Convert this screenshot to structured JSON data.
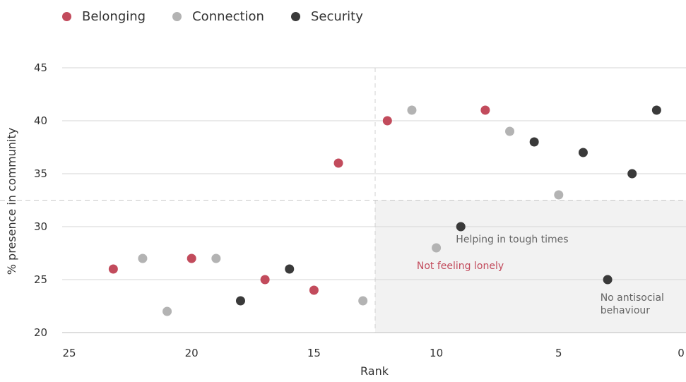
{
  "chart_data": {
    "type": "scatter",
    "xlabel": "Rank",
    "ylabel": "% presence in community",
    "xlim": [
      25,
      0
    ],
    "ylim": [
      20,
      45
    ],
    "x_ticks": [
      25,
      20,
      15,
      10,
      5,
      0
    ],
    "y_ticks": [
      20,
      25,
      30,
      35,
      40,
      45
    ],
    "grid": "horizontal",
    "legend_position": "top-left",
    "reference_lines": {
      "x": 12.5,
      "y": 32.5
    },
    "highlight_region": {
      "x_from": 12.5,
      "x_to": 0,
      "y_from": 20,
      "y_to": 32.5
    },
    "series": [
      {
        "name": "Belonging",
        "color": "#c24b5c",
        "points": [
          {
            "x": 23.2,
            "y": 26
          },
          {
            "x": 20,
            "y": 27
          },
          {
            "x": 17,
            "y": 25
          },
          {
            "x": 15,
            "y": 24
          },
          {
            "x": 14,
            "y": 36
          },
          {
            "x": 12,
            "y": 40
          },
          {
            "x": 8,
            "y": 41
          }
        ]
      },
      {
        "name": "Connection",
        "color": "#b3b3b3",
        "points": [
          {
            "x": 22,
            "y": 27
          },
          {
            "x": 21,
            "y": 22
          },
          {
            "x": 19,
            "y": 27
          },
          {
            "x": 13,
            "y": 23
          },
          {
            "x": 11,
            "y": 41
          },
          {
            "x": 10,
            "y": 28
          },
          {
            "x": 7,
            "y": 39
          },
          {
            "x": 5,
            "y": 33
          }
        ]
      },
      {
        "name": "Security",
        "color": "#3a3a3a",
        "points": [
          {
            "x": 18,
            "y": 23
          },
          {
            "x": 16,
            "y": 26
          },
          {
            "x": 9,
            "y": 30
          },
          {
            "x": 6,
            "y": 38
          },
          {
            "x": 4,
            "y": 37
          },
          {
            "x": 3,
            "y": 25
          },
          {
            "x": 2,
            "y": 35
          },
          {
            "x": 1,
            "y": 41
          }
        ]
      }
    ],
    "annotations": [
      {
        "text": "Helping in tough times",
        "x": 9.2,
        "y": 28.5,
        "color": "#666666"
      },
      {
        "text": "Not feeling lonely",
        "x": 10.8,
        "y": 26.0,
        "color": "#c24b5c"
      },
      {
        "lines": [
          "No antisocial",
          "behaviour"
        ],
        "x": 3.3,
        "y": 23.0,
        "color": "#666666"
      }
    ]
  }
}
